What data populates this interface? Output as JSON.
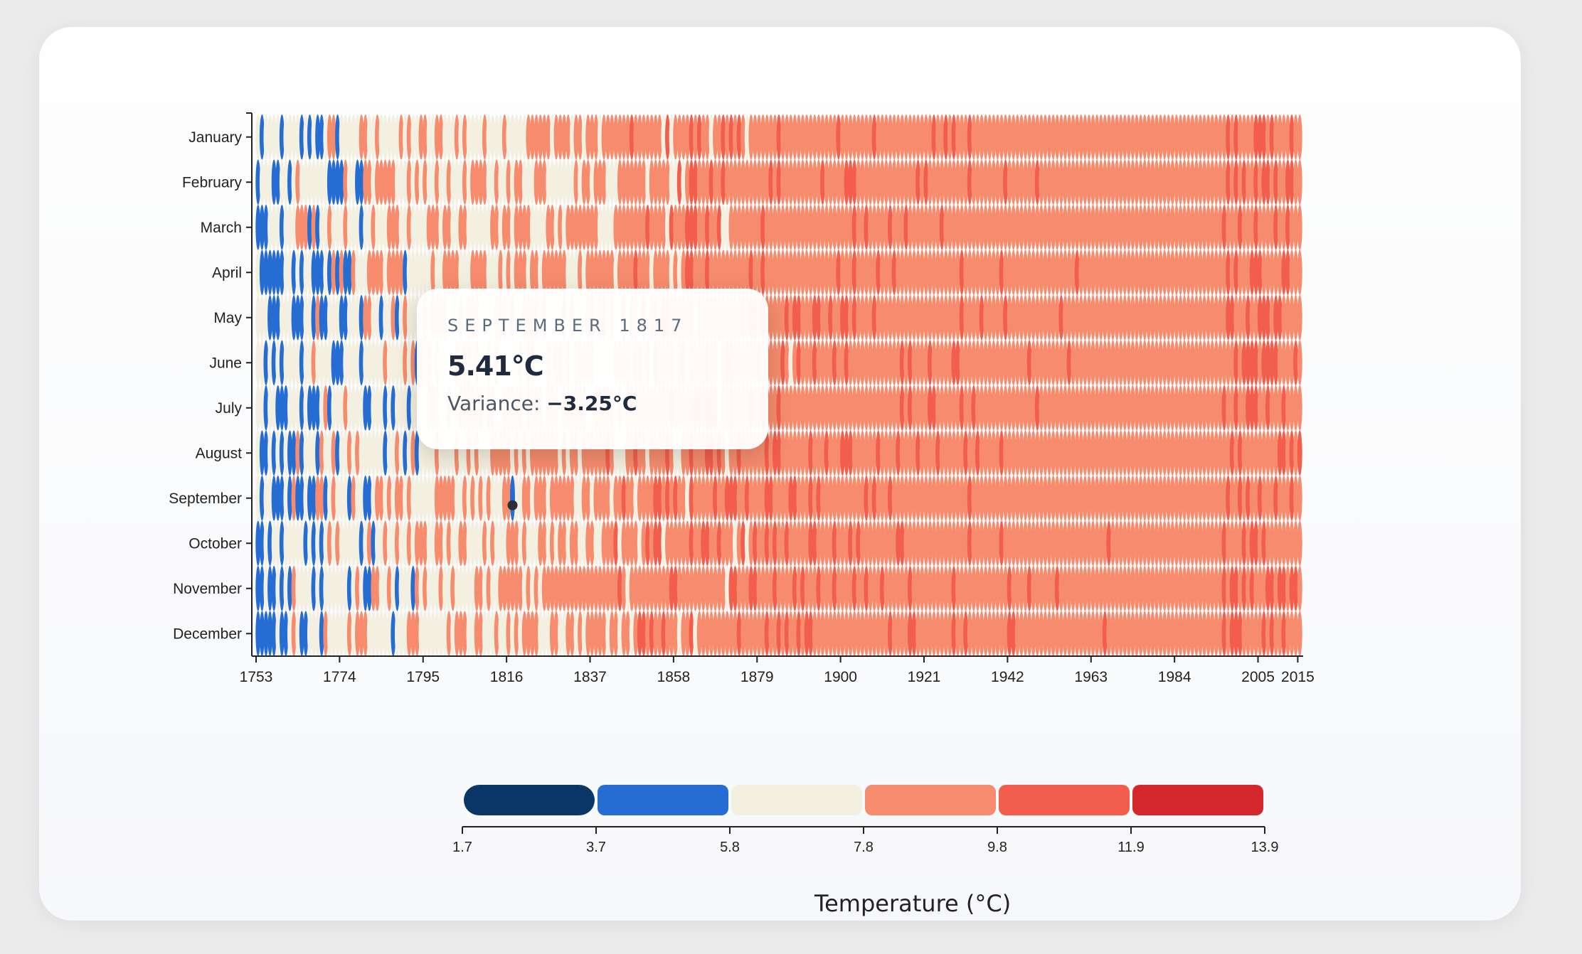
{
  "chart_data": {
    "type": "heatmap",
    "months": [
      "January",
      "February",
      "March",
      "April",
      "May",
      "June",
      "July",
      "August",
      "September",
      "October",
      "November",
      "December"
    ],
    "x_range": [
      1753,
      2015
    ],
    "x_ticks": [
      "1753",
      "1774",
      "1795",
      "1816",
      "1837",
      "1858",
      "1879",
      "1900",
      "1921",
      "1942",
      "1963",
      "1984",
      "2005",
      "2015"
    ],
    "legend": {
      "title": "Temperature (°C)",
      "thresholds": [
        "1.7",
        "3.7",
        "5.8",
        "7.8",
        "9.8",
        "11.9",
        "13.9"
      ],
      "colors": [
        "#0b3767",
        "#266dd3",
        "#f4f0e1",
        "#f68c6d",
        "#f25e4b",
        "#d5282c"
      ]
    },
    "highlight": {
      "year": 1817,
      "month": "September",
      "value": 5.41,
      "variance": -3.25
    }
  },
  "tooltip": {
    "date": "SEPTEMBER 1817",
    "value": "5.41°C",
    "variance_label": "Variance: ",
    "variance_value": "−3.25°C"
  }
}
